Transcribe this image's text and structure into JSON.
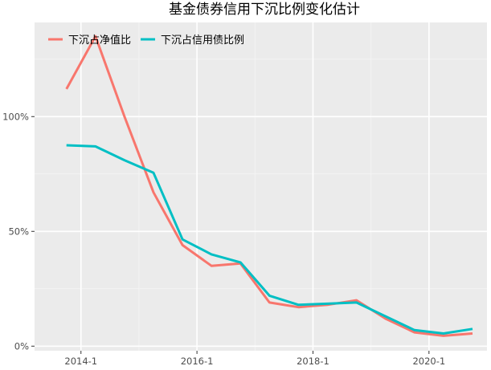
{
  "chart_data": {
    "type": "line",
    "title": "基金债券信用下沉比例变化估计",
    "xlabel": "",
    "ylabel": "",
    "x_dates": [
      "2013-10",
      "2014-04",
      "2014-10",
      "2015-04",
      "2015-10",
      "2016-04",
      "2016-10",
      "2017-04",
      "2017-10",
      "2018-04",
      "2018-10",
      "2019-04",
      "2019-10",
      "2020-04",
      "2020-10"
    ],
    "x_tick_labels": [
      "2014-1",
      "2016-1",
      "2018-1",
      "2020-1"
    ],
    "y_tick_labels": [
      "0%",
      "50%",
      "100%"
    ],
    "y_ticks": [
      0,
      0.5,
      1.0
    ],
    "ylim": [
      -0.02,
      1.41
    ],
    "grid": true,
    "legend_position": "top-left",
    "series": [
      {
        "name": "下沉占净值比",
        "color": "#F8766D",
        "values": [
          1.12,
          1.35,
          1.0,
          0.67,
          0.44,
          0.35,
          0.36,
          0.19,
          0.17,
          0.18,
          0.2,
          0.12,
          0.06,
          0.045,
          0.055
        ]
      },
      {
        "name": "下沉占信用债比例",
        "color": "#00BFC4",
        "values": [
          0.875,
          0.87,
          0.81,
          0.755,
          0.465,
          0.4,
          0.365,
          0.22,
          0.18,
          0.185,
          0.19,
          0.13,
          0.07,
          0.055,
          0.075
        ]
      }
    ]
  }
}
